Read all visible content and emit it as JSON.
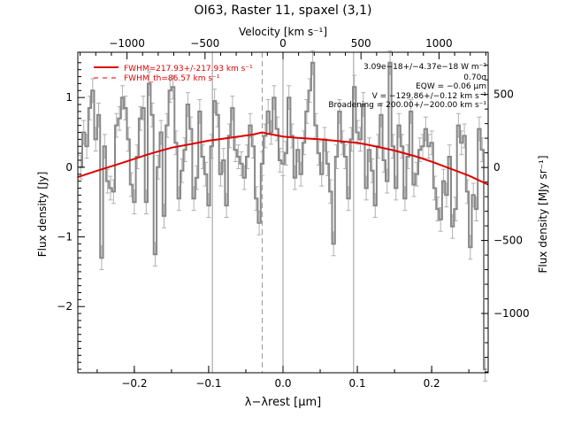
{
  "chart_data": {
    "type": "line",
    "title": "OI63, Raster 11, spaxel (3,1)",
    "xlabel": "λ−λrest [µm]",
    "ylabel": "Flux density [Jy]",
    "top_axis_label": "Velocity [km s⁻¹]",
    "right_axis_label": "Flux density [MJy sr⁻¹]",
    "xlim": [
      -0.276,
      0.276
    ],
    "ylim": [
      -2.95,
      1.65
    ],
    "top_lim": [
      -1315,
      1315
    ],
    "right_lim": [
      -1406,
      789
    ],
    "grid": false,
    "legend_position": "top-left",
    "x_ticks": [
      -0.2,
      -0.1,
      0.0,
      0.1,
      0.2
    ],
    "x_tick_labels": [
      "−0.2",
      "−0.1",
      "0.0",
      "0.1",
      "0.2"
    ],
    "y_ticks": [
      -2,
      -1,
      0,
      1
    ],
    "y_tick_labels": [
      "−2",
      "−1",
      "0",
      "1"
    ],
    "top_ticks": [
      -1000,
      -500,
      0,
      500,
      1000
    ],
    "top_tick_labels": [
      "−1000",
      "−500",
      "0",
      "500",
      "1000"
    ],
    "right_ticks": [
      -1000,
      -500,
      0,
      500
    ],
    "right_tick_labels": [
      "−1000",
      "−500",
      "0",
      "500"
    ],
    "vlines_solid": [
      -0.095,
      0.0,
      0.095
    ],
    "vline_dashed": -0.028,
    "colors": {
      "spectrum": "#888888",
      "fit": "#e00000",
      "errorbar": "#b0b0b0",
      "vline": "#999999"
    },
    "series": [
      {
        "name": "spectrum",
        "style": "step-with-errorbars",
        "x": [
          -0.272,
          -0.268,
          -0.264,
          -0.26,
          -0.256,
          -0.252,
          -0.248,
          -0.244,
          -0.24,
          -0.236,
          -0.232,
          -0.228,
          -0.224,
          -0.22,
          -0.216,
          -0.212,
          -0.208,
          -0.204,
          -0.2,
          -0.196,
          -0.192,
          -0.188,
          -0.184,
          -0.18,
          -0.176,
          -0.172,
          -0.168,
          -0.164,
          -0.16,
          -0.156,
          -0.152,
          -0.148,
          -0.144,
          -0.14,
          -0.136,
          -0.132,
          -0.128,
          -0.124,
          -0.12,
          -0.116,
          -0.112,
          -0.108,
          -0.104,
          -0.1,
          -0.096,
          -0.092,
          -0.088,
          -0.084,
          -0.08,
          -0.076,
          -0.072,
          -0.068,
          -0.064,
          -0.06,
          -0.056,
          -0.052,
          -0.048,
          -0.044,
          -0.04,
          -0.036,
          -0.032,
          -0.028,
          -0.024,
          -0.02,
          -0.016,
          -0.012,
          -0.008,
          -0.004,
          0.0,
          0.004,
          0.008,
          0.012,
          0.016,
          0.02,
          0.024,
          0.028,
          0.032,
          0.036,
          0.04,
          0.044,
          0.048,
          0.052,
          0.056,
          0.06,
          0.064,
          0.068,
          0.072,
          0.076,
          0.08,
          0.084,
          0.088,
          0.092,
          0.096,
          0.1,
          0.104,
          0.108,
          0.112,
          0.116,
          0.12,
          0.124,
          0.128,
          0.132,
          0.136,
          0.14,
          0.144,
          0.148,
          0.152,
          0.156,
          0.16,
          0.164,
          0.168,
          0.172,
          0.176,
          0.18,
          0.184,
          0.188,
          0.192,
          0.196,
          0.2,
          0.204,
          0.208,
          0.212,
          0.216,
          0.22,
          0.224,
          0.228,
          0.232,
          0.236,
          0.24,
          0.244,
          0.248,
          0.252,
          0.256,
          0.26,
          0.264,
          0.268,
          0.272
        ],
        "y": [
          0.0,
          0.5,
          0.3,
          0.85,
          1.1,
          0.4,
          0.75,
          -1.3,
          0.3,
          -0.2,
          -0.3,
          -0.35,
          0.6,
          0.7,
          1.0,
          0.85,
          0.4,
          -0.25,
          -0.5,
          0.15,
          0.7,
          0.85,
          -0.5,
          1.2,
          0.75,
          -1.25,
          0.0,
          0.5,
          -0.7,
          0.6,
          1.1,
          1.15,
          0.35,
          -0.45,
          -0.05,
          0.25,
          0.9,
          0.55,
          -0.45,
          -0.15,
          0.8,
          0.15,
          -0.1,
          -0.55,
          0.3,
          0.95,
          0.75,
          -0.1,
          0.1,
          -0.55,
          0.45,
          0.85,
          0.25,
          0.15,
          0.05,
          -0.15,
          0.15,
          0.6,
          0.3,
          -0.45,
          -0.8,
          0.05,
          0.45,
          0.8,
          0.5,
          1.0,
          0.55,
          0.1,
          0.05,
          0.2,
          1.0,
          0.45,
          -0.15,
          0.25,
          -0.1,
          0.35,
          0.8,
          1.1,
          1.5,
          0.6,
          0.2,
          -0.1,
          0.4,
          0.05,
          -0.35,
          -1.1,
          0.15,
          0.8,
          0.35,
          0.15,
          -0.45,
          0.4,
          1.15,
          0.5,
          0.4,
          0.9,
          -0.3,
          0.25,
          -0.05,
          -0.55,
          0.3,
          0.75,
          0.1,
          -0.2,
          1.5,
          0.3,
          -0.3,
          0.6,
          0.3,
          -0.45,
          0.15,
          0.8,
          -0.25,
          -0.1,
          0.25,
          0.3,
          0.55,
          0.3,
          0.35,
          -0.3,
          -0.6,
          -0.75,
          -0.2,
          -0.4,
          0.15,
          -0.85,
          -0.6,
          0.6,
          0.35,
          0.45,
          -0.35,
          -1.15,
          -0.4,
          -0.6,
          0.55,
          0.25,
          -2.9
        ],
        "yerr": 0.17
      },
      {
        "name": "FWHM=217.93+/-217.93 km s⁻¹",
        "style": "line",
        "x": [
          -0.276,
          -0.25,
          -0.22,
          -0.2,
          -0.18,
          -0.15,
          -0.12,
          -0.1,
          -0.08,
          -0.06,
          -0.04,
          -0.028,
          -0.02,
          -0.01,
          0.0,
          0.02,
          0.05,
          0.08,
          0.1,
          0.12,
          0.15,
          0.18,
          0.2,
          0.23,
          0.25,
          0.276
        ],
        "y": [
          -0.14,
          -0.05,
          0.05,
          0.12,
          0.19,
          0.28,
          0.34,
          0.38,
          0.41,
          0.44,
          0.47,
          0.5,
          0.48,
          0.46,
          0.44,
          0.42,
          0.4,
          0.37,
          0.35,
          0.31,
          0.24,
          0.15,
          0.08,
          -0.04,
          -0.12,
          -0.25
        ]
      },
      {
        "name": "FWHM_th=86.57 km s⁻¹",
        "style": "dashed",
        "x": [],
        "y": []
      }
    ],
    "annotations": [
      "3.09e−18+/−4.37e−18 W m⁻²",
      "0.70σ",
      "EQW = −0.06 µm",
      "V = −129.86+/−0.12 km s⁻¹",
      "Broadening = 200.00+/−200.00 km s⁻¹"
    ]
  }
}
